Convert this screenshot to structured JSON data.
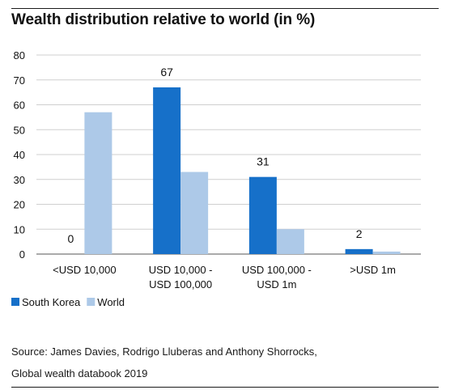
{
  "title": "Wealth distribution relative to world (in %)",
  "chart_data": {
    "type": "bar",
    "categories": [
      [
        "<USD 10,000"
      ],
      [
        "USD 10,000 -",
        "USD 100,000"
      ],
      [
        "USD 100,000 -",
        "USD 1m"
      ],
      [
        ">USD 1m"
      ]
    ],
    "series": [
      {
        "name": "South Korea",
        "values": [
          0,
          67,
          31,
          2
        ],
        "color": "#1670c9",
        "labels": [
          "0",
          "67",
          "31",
          "2"
        ]
      },
      {
        "name": "World",
        "values": [
          57,
          33,
          10,
          1
        ],
        "color": "#adc9e8"
      }
    ],
    "ylim": [
      0,
      80
    ],
    "yticks": [
      0,
      10,
      20,
      30,
      40,
      50,
      60,
      70,
      80
    ],
    "grid": true,
    "legend_position": "bottom-left"
  },
  "source": {
    "line1": "Source: James Davies, Rodrigo Lluberas and Anthony Shorrocks,",
    "line2": "Global wealth databook 2019"
  }
}
